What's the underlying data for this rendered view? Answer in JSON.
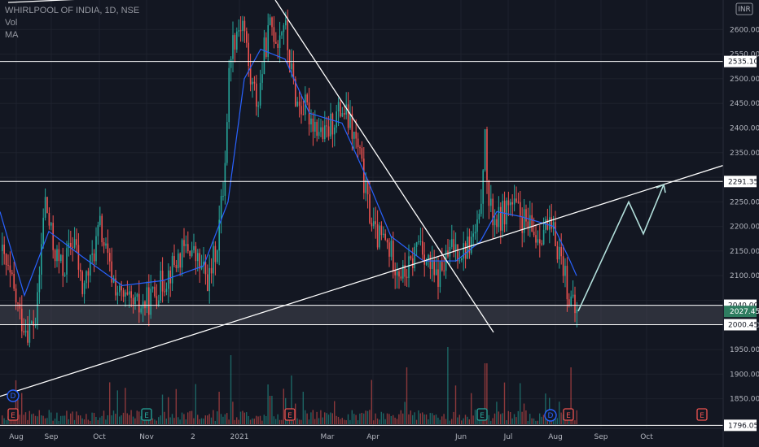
{
  "legend": {
    "symbol": "WHIRLPOOL OF INDIA, 1D, NSE",
    "vol": "Vol",
    "ma": "MA"
  },
  "currency": "INR",
  "chart_data": {
    "type": "candlestick",
    "title": "WHIRLPOOL OF INDIA, 1D, NSE",
    "y_axis": {
      "min": 1790,
      "max": 2660,
      "ticks": [
        1796.05,
        1850,
        1900,
        1950,
        2000,
        2050,
        2100,
        2150,
        2200,
        2250,
        2300,
        2350,
        2400,
        2450,
        2500,
        2550,
        2600
      ]
    },
    "x_axis": {
      "tick_labels": [
        "Aug",
        "Sep",
        "Oct",
        "Nov",
        "2",
        "2021",
        "Mar",
        "Apr",
        "Jun",
        "Jul",
        "Aug",
        "Sep",
        "Oct"
      ]
    },
    "horizontal_levels": [
      2535.1,
      2291.35,
      2040.0,
      2000.45
    ],
    "current_price": 2027.45,
    "bottom_label": 1796.05,
    "support_zone": [
      2000.45,
      2040.0
    ],
    "price_path": [
      [
        0,
        2150
      ],
      [
        14,
        2080
      ],
      [
        24,
        2015
      ],
      [
        34,
        1990
      ],
      [
        44,
        2010
      ],
      [
        54,
        2260
      ],
      [
        64,
        2160
      ],
      [
        76,
        2110
      ],
      [
        90,
        2180
      ],
      [
        100,
        2070
      ],
      [
        110,
        2120
      ],
      [
        122,
        2200
      ],
      [
        134,
        2110
      ],
      [
        146,
        2060
      ],
      [
        158,
        2040
      ],
      [
        170,
        2035
      ],
      [
        182,
        2050
      ],
      [
        196,
        2080
      ],
      [
        208,
        2110
      ],
      [
        220,
        2140
      ],
      [
        232,
        2160
      ],
      [
        244,
        2120
      ],
      [
        256,
        2090
      ],
      [
        266,
        2170
      ],
      [
        274,
        2290
      ],
      [
        282,
        2560
      ],
      [
        290,
        2600
      ],
      [
        298,
        2620
      ],
      [
        306,
        2500
      ],
      [
        316,
        2450
      ],
      [
        324,
        2560
      ],
      [
        332,
        2610
      ],
      [
        340,
        2580
      ],
      [
        348,
        2620
      ],
      [
        356,
        2520
      ],
      [
        364,
        2450
      ],
      [
        374,
        2440
      ],
      [
        386,
        2410
      ],
      [
        398,
        2380
      ],
      [
        410,
        2420
      ],
      [
        420,
        2440
      ],
      [
        430,
        2400
      ],
      [
        440,
        2350
      ],
      [
        450,
        2250
      ],
      [
        460,
        2180
      ],
      [
        472,
        2170
      ],
      [
        484,
        2130
      ],
      [
        494,
        2100
      ],
      [
        504,
        2120
      ],
      [
        514,
        2180
      ],
      [
        524,
        2130
      ],
      [
        534,
        2090
      ],
      [
        544,
        2120
      ],
      [
        556,
        2160
      ],
      [
        568,
        2150
      ],
      [
        578,
        2170
      ],
      [
        588,
        2200
      ],
      [
        594,
        2390
      ],
      [
        600,
        2230
      ],
      [
        612,
        2210
      ],
      [
        624,
        2250
      ],
      [
        634,
        2230
      ],
      [
        646,
        2200
      ],
      [
        658,
        2180
      ],
      [
        668,
        2200
      ],
      [
        680,
        2180
      ],
      [
        690,
        2130
      ],
      [
        698,
        2060
      ],
      [
        704,
        2025
      ],
      [
        708,
        2027
      ]
    ],
    "projection": [
      [
        710,
        2028
      ],
      [
        772,
        2250
      ],
      [
        790,
        2185
      ],
      [
        815,
        2285
      ]
    ],
    "ma_path": [
      [
        0,
        2230
      ],
      [
        30,
        2060
      ],
      [
        60,
        2190
      ],
      [
        100,
        2140
      ],
      [
        150,
        2080
      ],
      [
        200,
        2090
      ],
      [
        250,
        2120
      ],
      [
        280,
        2250
      ],
      [
        300,
        2500
      ],
      [
        320,
        2560
      ],
      [
        350,
        2540
      ],
      [
        380,
        2430
      ],
      [
        420,
        2410
      ],
      [
        450,
        2300
      ],
      [
        480,
        2180
      ],
      [
        520,
        2130
      ],
      [
        560,
        2130
      ],
      [
        590,
        2170
      ],
      [
        610,
        2230
      ],
      [
        640,
        2220
      ],
      [
        680,
        2200
      ],
      [
        700,
        2130
      ],
      [
        708,
        2100
      ]
    ],
    "trendlines": [
      {
        "from": [
          0,
          1855
        ],
        "to": [
          890,
          2325
        ]
      },
      {
        "from": [
          338,
          2660
        ],
        "to": [
          606,
          1985
        ]
      },
      {
        "from": [
          10,
          2655
        ],
        "to": [
          212,
          2670
        ]
      }
    ],
    "events": [
      {
        "x": 16,
        "letter": "D",
        "kind": "dividend-circle"
      },
      {
        "x": 16,
        "letter": "E",
        "kind": "earnings-red"
      },
      {
        "x": 180,
        "letter": "E",
        "kind": "earnings-teal"
      },
      {
        "x": 356,
        "letter": "E",
        "kind": "earnings-red"
      },
      {
        "x": 592,
        "letter": "E",
        "kind": "earnings-teal"
      },
      {
        "x": 676,
        "letter": "D",
        "kind": "dividend-circle"
      },
      {
        "x": 698,
        "letter": "E",
        "kind": "earnings-red"
      },
      {
        "x": 862,
        "letter": "E",
        "kind": "earnings-red-future"
      }
    ]
  },
  "colors": {
    "background": "#131722",
    "up": "#26a69a",
    "down": "#ef5350",
    "ma": "#2962ff",
    "level": "#ffffff",
    "zone": "#434651",
    "current": "#2e7d60",
    "projection": "#b2dfdb"
  }
}
